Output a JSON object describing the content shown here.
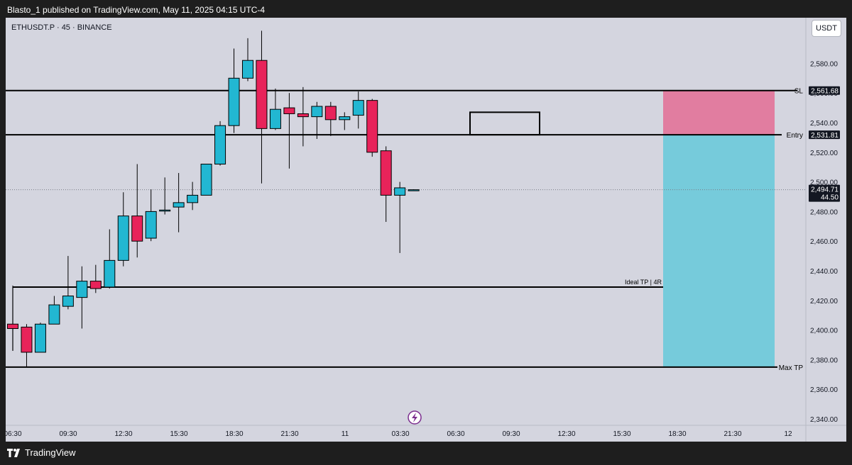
{
  "header": {
    "publisher_text": "Blasto_1 published on TradingView.com, May 11, 2025 04:15 UTC-4"
  },
  "symbol": {
    "label": "ETHUSDT.P · 45 · BINANCE"
  },
  "currency_button": "USDT",
  "footer": {
    "brand": "TradingView"
  },
  "colors": {
    "up": "#22b7d2",
    "down": "#e8235a",
    "background": "#d4d5df",
    "stop_zone": "#e17da0",
    "target_zone": "#76cbdb"
  },
  "chart_data": {
    "type": "candlestick",
    "title": "ETHUSDT.P · 45 · BINANCE",
    "interval": "45",
    "x_ticks": [
      "06:30",
      "09:30",
      "12:30",
      "15:30",
      "18:30",
      "21:30",
      "11",
      "03:30",
      "06:30",
      "09:30",
      "12:30",
      "15:30",
      "18:30",
      "21:30",
      "12"
    ],
    "y_ticks": [
      2340,
      2360,
      2380,
      2400,
      2420,
      2440,
      2460,
      2480,
      2500,
      2520,
      2540,
      2560,
      2580
    ],
    "ylim": [
      2336,
      2610
    ],
    "candles": [
      {
        "o": 2404,
        "h": 2430,
        "l": 2386,
        "c": 2401
      },
      {
        "o": 2402,
        "h": 2404,
        "l": 2375,
        "c": 2385
      },
      {
        "o": 2385,
        "h": 2405,
        "l": 2385,
        "c": 2404
      },
      {
        "o": 2404,
        "h": 2423,
        "l": 2404,
        "c": 2417
      },
      {
        "o": 2416,
        "h": 2450,
        "l": 2414,
        "c": 2423
      },
      {
        "o": 2422,
        "h": 2443,
        "l": 2401,
        "c": 2433
      },
      {
        "o": 2433,
        "h": 2444,
        "l": 2425,
        "c": 2428
      },
      {
        "o": 2429,
        "h": 2468,
        "l": 2428,
        "c": 2447
      },
      {
        "o": 2447,
        "h": 2493,
        "l": 2443,
        "c": 2477
      },
      {
        "o": 2477,
        "h": 2512,
        "l": 2449,
        "c": 2460
      },
      {
        "o": 2462,
        "h": 2495,
        "l": 2460,
        "c": 2480
      },
      {
        "o": 2481,
        "h": 2503,
        "l": 2478,
        "c": 2481
      },
      {
        "o": 2483,
        "h": 2506,
        "l": 2466,
        "c": 2486
      },
      {
        "o": 2486,
        "h": 2500,
        "l": 2481,
        "c": 2491
      },
      {
        "o": 2491,
        "h": 2511,
        "l": 2491,
        "c": 2512
      },
      {
        "o": 2512,
        "h": 2541,
        "l": 2511,
        "c": 2538
      },
      {
        "o": 2538,
        "h": 2590,
        "l": 2533,
        "c": 2570
      },
      {
        "o": 2570,
        "h": 2597,
        "l": 2568,
        "c": 2582
      },
      {
        "o": 2582,
        "h": 2602,
        "l": 2499,
        "c": 2536
      },
      {
        "o": 2536,
        "h": 2563,
        "l": 2535,
        "c": 2549
      },
      {
        "o": 2550,
        "h": 2560,
        "l": 2509,
        "c": 2546
      },
      {
        "o": 2546,
        "h": 2564,
        "l": 2524,
        "c": 2544
      },
      {
        "o": 2544,
        "h": 2554,
        "l": 2529,
        "c": 2551
      },
      {
        "o": 2551,
        "h": 2554,
        "l": 2531,
        "c": 2542
      },
      {
        "o": 2542,
        "h": 2547,
        "l": 2535,
        "c": 2544
      },
      {
        "o": 2545,
        "h": 2561,
        "l": 2536,
        "c": 2555
      },
      {
        "o": 2555,
        "h": 2556,
        "l": 2517,
        "c": 2520
      },
      {
        "o": 2521,
        "h": 2524,
        "l": 2473,
        "c": 2491
      },
      {
        "o": 2491,
        "h": 2500,
        "l": 2452,
        "c": 2496
      },
      {
        "o": 2494.71,
        "h": 2495,
        "l": 2494,
        "c": 2494.71
      }
    ],
    "levels": [
      {
        "name": "SL",
        "value": 2561.68
      },
      {
        "name": "Entry",
        "value": 2531.81
      },
      {
        "name": "Ideal TP | 4R",
        "value": 2429
      },
      {
        "name": "Max TP",
        "value": 2375
      }
    ],
    "labels": {
      "sl": "SL",
      "entry": "Entry",
      "ideal_tp": "Ideal TP | 4R",
      "max_tp": "Max TP"
    },
    "price_badges": {
      "sl": "2,561.68",
      "entry": "2,531.81",
      "last": "2,494.71",
      "countdown": "44.50"
    },
    "last_price": 2494.71
  }
}
